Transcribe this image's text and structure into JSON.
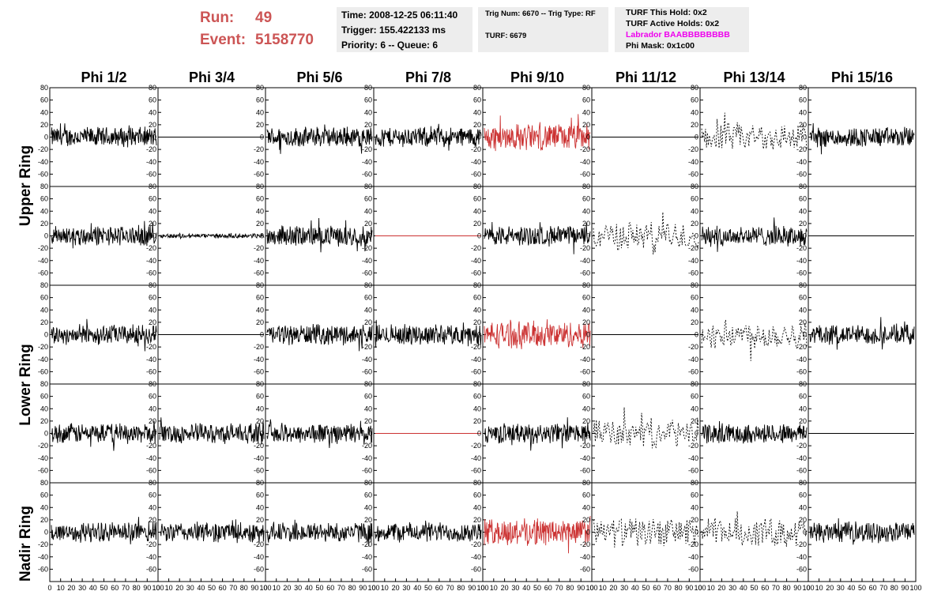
{
  "header": {
    "run_label": "Run:",
    "run_value": "49",
    "event_label": "Event:",
    "event_value": "5158770",
    "time": "Time: 2008-12-25 06:11:40",
    "trigger": "Trigger: 155.422133 ms",
    "priority": "Priority: 6 -- Queue: 6",
    "trig_num": "Trig Num: 6670 -- Trig Type: RF",
    "turf": "TURF: 6679",
    "turf_this_hold": "TURF This Hold: 0x2",
    "turf_active_holds": "TURF Active Holds: 0x2",
    "labrador": "Labrador BAABBBBBBBB",
    "phi_mask": "Phi Mask: 0x1c00",
    "colors": {
      "run_text": "#cc5555",
      "labrador_text": "#ee00ee",
      "box_bg": "#ededed"
    }
  },
  "chart_data": {
    "type": "line",
    "title": "",
    "columns": [
      "Phi 1/2",
      "Phi 3/4",
      "Phi 5/6",
      "Phi 7/8",
      "Phi 9/10",
      "Phi 11/12",
      "Phi 13/14",
      "Phi 15/16"
    ],
    "ring_labels": [
      "Upper Ring",
      "Lower Ring",
      "Nadir Ring"
    ],
    "ylim": [
      -80,
      80
    ],
    "yticks": [
      -60,
      -40,
      -20,
      0,
      20,
      40,
      60,
      80
    ],
    "xlim": [
      0,
      100
    ],
    "xticks": [
      0,
      10,
      20,
      30,
      40,
      50,
      60,
      70,
      80,
      90,
      100
    ],
    "panel_rows": [
      [
        "noisy",
        "flat",
        "noisy",
        "noisy",
        "red",
        "flat",
        "dashed",
        "noisy"
      ],
      [
        "noisy",
        "small",
        "noisy",
        "flatred",
        "noisy",
        "dashed",
        "noisy",
        "flat"
      ],
      [
        "noisy",
        "flat",
        "noisy",
        "noisy",
        "red",
        "flat",
        "dashed",
        "noisy"
      ],
      [
        "noisy",
        "noisy",
        "noisy",
        "flatred",
        "noisy",
        "dashed",
        "noisy",
        "flat"
      ],
      [
        "noisy",
        "noisy",
        "noisy",
        "noisy",
        "red",
        "dashed",
        "dashed",
        "noisy"
      ]
    ],
    "series_colors": {
      "default": "#000000",
      "triggered": "#cc3333"
    },
    "grid": false
  }
}
